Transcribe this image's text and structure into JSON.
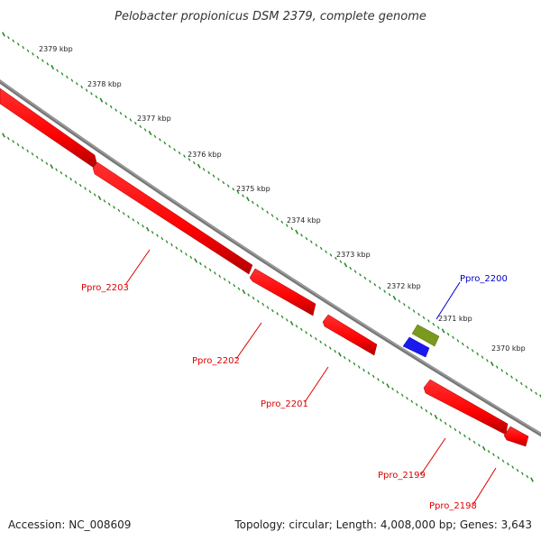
{
  "title": "Pelobacter propionicus DSM 2379, complete genome",
  "kbp_labels": [
    "2379 kbp",
    "2378 kbp",
    "2377 kbp",
    "2376 kbp",
    "2375 kbp",
    "2374 kbp",
    "2373 kbp",
    "2372 kbp",
    "2371 kbp",
    "2370 kbp"
  ],
  "genes": [
    {
      "name": "Ppro_2203",
      "strand": "reverse",
      "color": "#dd0000"
    },
    {
      "name": "Ppro_2202",
      "strand": "reverse",
      "color": "#dd0000"
    },
    {
      "name": "Ppro_2201",
      "strand": "reverse",
      "color": "#dd0000"
    },
    {
      "name": "Ppro_2200",
      "strand": "reverse",
      "color": "#0000cc"
    },
    {
      "name": "Ppro_2199",
      "strand": "reverse",
      "color": "#dd0000"
    },
    {
      "name": "Ppro_2198",
      "strand": "reverse",
      "color": "#dd0000"
    }
  ],
  "colors": {
    "cds": "#ff0000",
    "rna": "#0000ff",
    "other_feature": "#7a9a1e",
    "backbone": "#888888",
    "ticks": "#228b22"
  },
  "footer": {
    "accession": "Accession: NC_008609",
    "summary": "Topology: circular; Length: 4,008,000 bp; Genes: 3,643"
  }
}
